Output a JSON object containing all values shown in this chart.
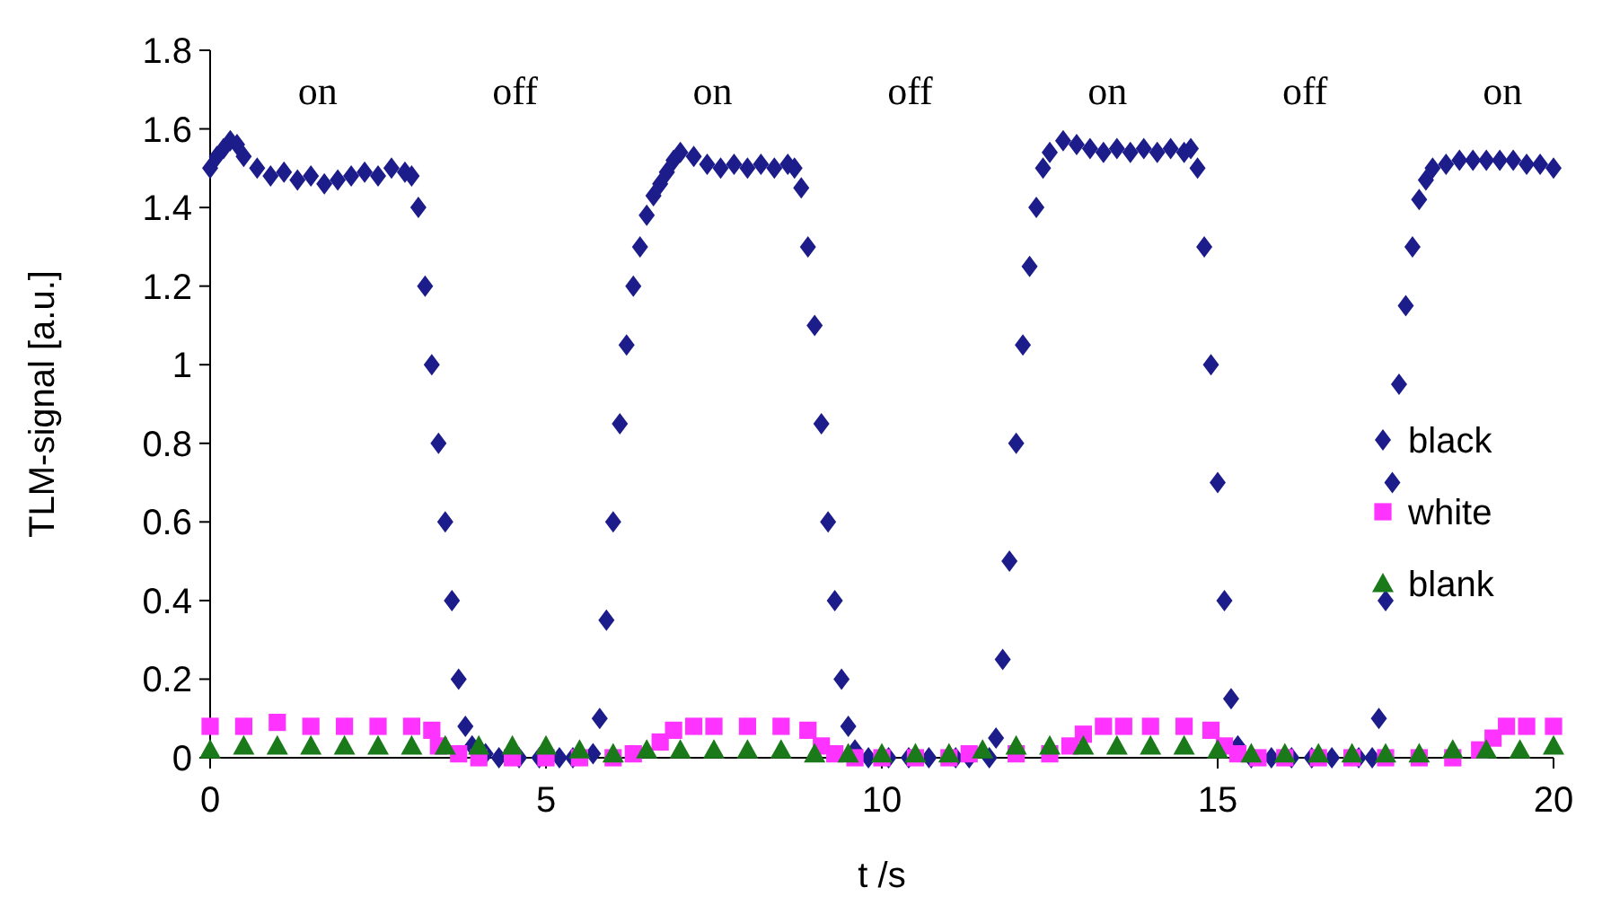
{
  "chart_data": {
    "type": "scatter",
    "xlabel": "t /s",
    "ylabel": "TLM-signal [a.u.]",
    "xlim": [
      0,
      20
    ],
    "xticks": [
      0,
      5,
      10,
      15,
      20
    ],
    "ylim": [
      0,
      1.8
    ],
    "yticks": [
      0,
      0.2,
      0.4,
      0.6,
      0.8,
      1,
      1.2,
      1.4,
      1.6,
      1.8
    ],
    "grid": false,
    "legend": "right",
    "annotations": [
      "on",
      "off",
      "on",
      "off",
      "on",
      "off",
      "on"
    ],
    "series": [
      {
        "name": "black",
        "color": "#1c1c8a",
        "marker": "diamond",
        "x": [
          0,
          0.1,
          0.2,
          0.3,
          0.4,
          0.5,
          0.7,
          0.9,
          1.1,
          1.3,
          1.5,
          1.7,
          1.9,
          2.1,
          2.3,
          2.5,
          2.7,
          2.9,
          3.0,
          3.1,
          3.2,
          3.3,
          3.4,
          3.5,
          3.6,
          3.7,
          3.8,
          3.9,
          4.1,
          4.3,
          4.6,
          4.9,
          5.2,
          5.4,
          5.7,
          5.8,
          5.9,
          6.0,
          6.1,
          6.2,
          6.3,
          6.4,
          6.5,
          6.6,
          6.7,
          6.8,
          6.9,
          7.0,
          7.2,
          7.4,
          7.6,
          7.8,
          8.0,
          8.2,
          8.4,
          8.6,
          8.7,
          8.8,
          8.9,
          9.0,
          9.1,
          9.2,
          9.3,
          9.4,
          9.5,
          9.6,
          9.8,
          10.1,
          10.4,
          10.7,
          11.1,
          11.3,
          11.6,
          11.7,
          11.8,
          11.9,
          12.0,
          12.1,
          12.2,
          12.3,
          12.4,
          12.5,
          12.7,
          12.9,
          13.1,
          13.3,
          13.5,
          13.7,
          13.9,
          14.1,
          14.3,
          14.5,
          14.6,
          14.7,
          14.8,
          14.9,
          15.0,
          15.1,
          15.2,
          15.3,
          15.5,
          15.8,
          16.1,
          16.4,
          16.7,
          17.1,
          17.3,
          17.4,
          17.5,
          17.6,
          17.7,
          17.8,
          17.9,
          18.0,
          18.1,
          18.2,
          18.4,
          18.6,
          18.8,
          19.0,
          19.2,
          19.4,
          19.6,
          19.8,
          20.0
        ],
        "values": [
          1.5,
          1.53,
          1.55,
          1.57,
          1.56,
          1.53,
          1.5,
          1.48,
          1.49,
          1.47,
          1.48,
          1.46,
          1.47,
          1.48,
          1.49,
          1.48,
          1.5,
          1.49,
          1.48,
          1.4,
          1.2,
          1.0,
          0.8,
          0.6,
          0.4,
          0.2,
          0.08,
          0.03,
          0.01,
          0,
          0,
          0,
          0,
          0,
          0.01,
          0.1,
          0.35,
          0.6,
          0.85,
          1.05,
          1.2,
          1.3,
          1.38,
          1.43,
          1.46,
          1.49,
          1.52,
          1.54,
          1.53,
          1.51,
          1.5,
          1.51,
          1.5,
          1.51,
          1.5,
          1.51,
          1.5,
          1.45,
          1.3,
          1.1,
          0.85,
          0.6,
          0.4,
          0.2,
          0.08,
          0.02,
          0,
          0,
          0,
          0,
          0,
          0,
          0,
          0.05,
          0.25,
          0.5,
          0.8,
          1.05,
          1.25,
          1.4,
          1.5,
          1.54,
          1.57,
          1.56,
          1.55,
          1.54,
          1.55,
          1.54,
          1.55,
          1.54,
          1.55,
          1.54,
          1.55,
          1.5,
          1.3,
          1.0,
          0.7,
          0.4,
          0.15,
          0.03,
          0,
          0,
          0,
          0,
          0,
          0,
          0,
          0.1,
          0.4,
          0.7,
          0.95,
          1.15,
          1.3,
          1.42,
          1.47,
          1.5,
          1.51,
          1.52,
          1.52,
          1.52,
          1.52,
          1.52,
          1.51,
          1.51,
          1.5
        ]
      },
      {
        "name": "white",
        "color": "#ff33ff",
        "marker": "square",
        "x": [
          0,
          0.5,
          1,
          1.5,
          2,
          2.5,
          3,
          3.3,
          3.4,
          3.7,
          4,
          4.5,
          5,
          5.5,
          6,
          6.3,
          6.7,
          6.9,
          7.2,
          7.5,
          8,
          8.5,
          8.9,
          9.1,
          9.3,
          9.6,
          10,
          10.5,
          11,
          11.3,
          12,
          12.5,
          12.8,
          13.0,
          13.3,
          13.6,
          14,
          14.5,
          14.9,
          15.1,
          15.3,
          15.6,
          16,
          16.5,
          17,
          17.5,
          18,
          18.5,
          18.9,
          19.1,
          19.3,
          19.6,
          20
        ],
        "values": [
          0.08,
          0.08,
          0.09,
          0.08,
          0.08,
          0.08,
          0.08,
          0.07,
          0.03,
          0.01,
          0,
          0,
          0,
          0,
          0,
          0.01,
          0.04,
          0.07,
          0.08,
          0.08,
          0.08,
          0.08,
          0.07,
          0.03,
          0.01,
          0,
          0,
          0,
          0,
          0.01,
          0.01,
          0.01,
          0.03,
          0.06,
          0.08,
          0.08,
          0.08,
          0.08,
          0.07,
          0.03,
          0.01,
          0,
          0,
          0,
          0,
          0,
          0,
          0,
          0.02,
          0.05,
          0.08,
          0.08,
          0.08
        ]
      },
      {
        "name": "blank",
        "color": "#1a7a1a",
        "marker": "triangle",
        "x": [
          0,
          0.5,
          1,
          1.5,
          2,
          2.5,
          3,
          3.5,
          4,
          4.5,
          5,
          5.5,
          6,
          6.5,
          7,
          7.5,
          8,
          8.5,
          9,
          9.5,
          10,
          10.5,
          11,
          11.5,
          12,
          12.5,
          13,
          13.5,
          14,
          14.5,
          15,
          15.5,
          16,
          16.5,
          17,
          17.5,
          18,
          18.5,
          19,
          19.5,
          20
        ],
        "values": [
          0.02,
          0.03,
          0.03,
          0.03,
          0.03,
          0.03,
          0.03,
          0.03,
          0.03,
          0.03,
          0.03,
          0.02,
          0.01,
          0.02,
          0.02,
          0.02,
          0.02,
          0.02,
          0.01,
          0.01,
          0.01,
          0.01,
          0.01,
          0.02,
          0.03,
          0.03,
          0.03,
          0.03,
          0.03,
          0.03,
          0.02,
          0.01,
          0.01,
          0.01,
          0.01,
          0.01,
          0.01,
          0.02,
          0.02,
          0.02,
          0.03
        ]
      }
    ]
  }
}
